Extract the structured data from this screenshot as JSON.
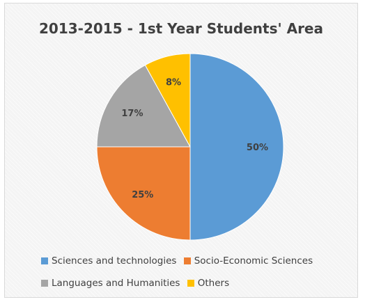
{
  "chart_data": {
    "type": "pie",
    "title": "2013-2015 - 1st Year Students' Area",
    "categories": [
      "Sciences and technologies",
      "Socio-Economic Sciences",
      "Languages and Humanities",
      "Others"
    ],
    "values": [
      50,
      25,
      17,
      8
    ],
    "data_labels": [
      "50%",
      "25%",
      "17%",
      "8%"
    ],
    "colors": [
      "#5b9bd5",
      "#ed7d31",
      "#a5a5a5",
      "#ffc000"
    ],
    "legend_position": "bottom"
  }
}
